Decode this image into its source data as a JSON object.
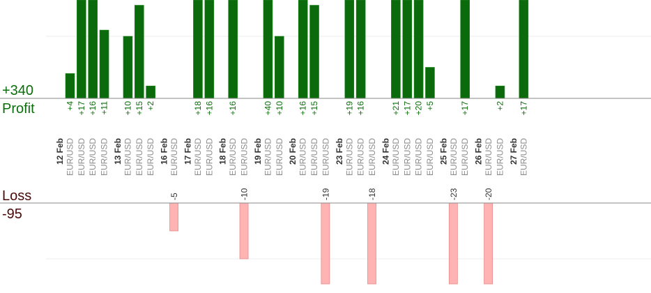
{
  "chart_data": {
    "type": "bar",
    "summary": {
      "profit_value": "+340",
      "profit_label": "Profit",
      "loss_label": "Loss",
      "loss_value": "-95"
    },
    "colors": {
      "profit_bar": "#0b6a0b",
      "profit_bar_highlight": "#1f8a1f",
      "profit_text": "#0a6e0a",
      "loss_bar": "#ffb3b3",
      "loss_bar_edge": "#e78a8a",
      "date_text": "#333333",
      "pair_text": "#8c8c8c",
      "axis": "#888888",
      "grid": "#ececec"
    },
    "profit_axis_max": 20,
    "loss_axis_max": 10,
    "days": [
      {
        "date": "12 Feb",
        "trades": [
          {
            "pair": "EUR/USD",
            "value": 4,
            "label": "+4"
          },
          {
            "pair": "EUR/USD",
            "value": 17,
            "label": "+17"
          },
          {
            "pair": "EUR/USD",
            "value": 16,
            "label": "+16"
          },
          {
            "pair": "EUR/USD",
            "value": 11,
            "label": "+11"
          }
        ]
      },
      {
        "date": "13 Feb",
        "trades": [
          {
            "pair": "EUR/USD",
            "value": 10,
            "label": "+10"
          },
          {
            "pair": "EUR/USD",
            "value": 15,
            "label": "+15"
          },
          {
            "pair": "EUR/USD",
            "value": 2,
            "label": "+2"
          }
        ]
      },
      {
        "date": "16 Feb",
        "trades": [
          {
            "pair": "EUR/USD",
            "value": -5,
            "label": "-5"
          }
        ]
      },
      {
        "date": "17 Feb",
        "trades": [
          {
            "pair": "EUR/USD",
            "value": 18,
            "label": "+18"
          },
          {
            "pair": "EUR/USD",
            "value": 16,
            "label": "+16"
          }
        ]
      },
      {
        "date": "18 Feb",
        "trades": [
          {
            "pair": "EUR/USD",
            "value": 16,
            "label": "+16"
          },
          {
            "pair": "EUR/USD",
            "value": -10,
            "label": "-10"
          }
        ]
      },
      {
        "date": "19 Feb",
        "trades": [
          {
            "pair": "EUR/USD",
            "value": 40,
            "label": "+40"
          },
          {
            "pair": "EUR/USD",
            "value": 10,
            "label": "+10"
          }
        ]
      },
      {
        "date": "20 Feb",
        "trades": [
          {
            "pair": "EUR/USD",
            "value": 16,
            "label": "+16"
          },
          {
            "pair": "EUR/USD",
            "value": 15,
            "label": "+15"
          },
          {
            "pair": "EUR/USD",
            "value": -19,
            "label": "-19"
          }
        ]
      },
      {
        "date": "23 Feb",
        "trades": [
          {
            "pair": "EUR/USD",
            "value": 19,
            "label": "+19"
          },
          {
            "pair": "EUR/USD",
            "value": 16,
            "label": "+16"
          },
          {
            "pair": "EUR/USD",
            "value": -18,
            "label": "-18"
          }
        ]
      },
      {
        "date": "24 Feb",
        "trades": [
          {
            "pair": "EUR/USD",
            "value": 21,
            "label": "+21"
          },
          {
            "pair": "EUR/USD",
            "value": 17,
            "label": "+17"
          },
          {
            "pair": "EUR/USD",
            "value": 20,
            "label": "+20"
          },
          {
            "pair": "EUR/USD",
            "value": 5,
            "label": "+5"
          }
        ]
      },
      {
        "date": "25 Feb",
        "trades": [
          {
            "pair": "EUR/USD",
            "value": -23,
            "label": "-23"
          },
          {
            "pair": "EUR/USD",
            "value": 17,
            "label": "+17"
          }
        ]
      },
      {
        "date": "26 Feb",
        "trades": [
          {
            "pair": "EUR/USD",
            "value": -20,
            "label": "-20"
          },
          {
            "pair": "EUR/USD",
            "value": 2,
            "label": "+2"
          }
        ]
      },
      {
        "date": "27 Feb",
        "trades": [
          {
            "pair": "EUR/USD",
            "value": 17,
            "label": "+17"
          }
        ]
      }
    ]
  }
}
